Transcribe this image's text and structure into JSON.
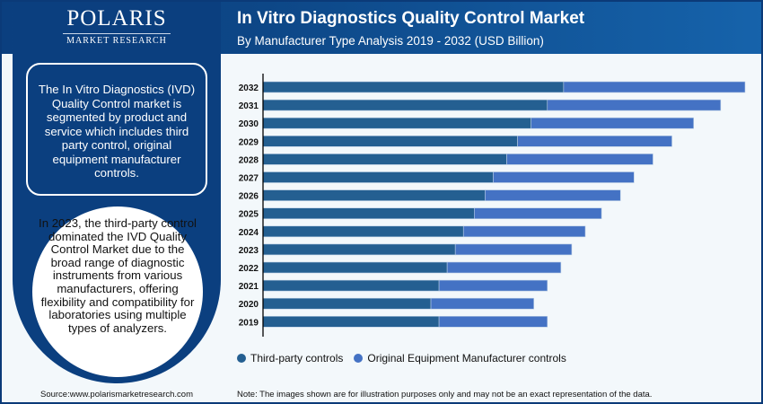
{
  "logo": {
    "brand": "POLARIS",
    "sub": "MARKET RESEARCH"
  },
  "header": {
    "title": "In Vitro Diagnostics Quality Control Market",
    "subtitle": "By Manufacturer Type Analysis 2019 - 2032 (USD Billion)"
  },
  "left_panel": {
    "info_text": "The In Vitro Diagnostics (IVD) Quality Control market is segmented by product and service which includes third party control, original equipment manufacturer controls.",
    "highlight_text": "In 2023, the third-party control dominated the IVD Quality Control Market due to the broad range of diagnostic instruments from various manufacturers, offering flexibility and compatibility for laboratories using multiple types of analyzers.",
    "source": "Source:www.polarismarketresearch.com"
  },
  "note": "Note: The images shown are for illustration purposes only and may not be an exact representation of the data.",
  "colors": {
    "third_party": "#245f91",
    "oem": "#4472c4",
    "background": "#f3f8fb",
    "navy": "#0b3f7f"
  },
  "chart_data": {
    "type": "bar",
    "orientation": "horizontal",
    "stacked": true,
    "title": "In Vitro Diagnostics Quality Control Market",
    "subtitle": "By Manufacturer Type Analysis 2019 - 2032 (USD Billion)",
    "xlabel": "",
    "ylabel": "",
    "categories": [
      "2019",
      "2020",
      "2021",
      "2022",
      "2023",
      "2024",
      "2025",
      "2026",
      "2027",
      "2028",
      "2029",
      "2030",
      "2031",
      "2032"
    ],
    "series": [
      {
        "name": "Third-party controls",
        "color": "#245f91",
        "values": [
          0.65,
          0.62,
          0.65,
          0.68,
          0.71,
          0.74,
          0.78,
          0.82,
          0.85,
          0.9,
          0.94,
          0.99,
          1.05,
          1.11
        ]
      },
      {
        "name": "Original Equipment Manufacturer controls",
        "color": "#4472c4",
        "values": [
          0.4,
          0.38,
          0.4,
          0.42,
          0.43,
          0.45,
          0.47,
          0.5,
          0.52,
          0.54,
          0.57,
          0.6,
          0.64,
          0.67
        ]
      }
    ],
    "xlim": [
      0,
      1.78
    ],
    "grid": false,
    "legend": "bottom-left"
  }
}
